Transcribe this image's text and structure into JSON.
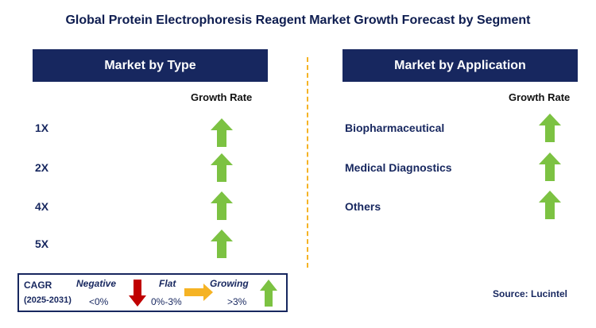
{
  "title": "Global Protein Electrophoresis Reagent Market Growth Forecast by Segment",
  "left_panel": {
    "header": "Market by Type",
    "column_header": "Growth Rate",
    "rows": [
      {
        "label": "1X",
        "growth": "growing"
      },
      {
        "label": "2X",
        "growth": "growing"
      },
      {
        "label": "4X",
        "growth": "growing"
      },
      {
        "label": "5X",
        "growth": "growing"
      }
    ]
  },
  "right_panel": {
    "header": "Market by Application",
    "column_header": "Growth Rate",
    "rows": [
      {
        "label": "Biopharmaceutical",
        "growth": "growing"
      },
      {
        "label": "Medical Diagnostics",
        "growth": "growing"
      },
      {
        "label": "Others",
        "growth": "growing"
      }
    ]
  },
  "legend": {
    "cagr": "CAGR",
    "period": "(2025-2031)",
    "negative_label": "Negative",
    "negative_value": "<0%",
    "flat_label": "Flat",
    "flat_value": "0%-3%",
    "growing_label": "Growing",
    "growing_value": ">3%"
  },
  "source": "Source: Lucintel",
  "colors": {
    "header_bg": "#17275f",
    "arrow_up": "#7cc242",
    "arrow_down": "#c00000",
    "arrow_flat": "#f5b324",
    "divider": "#f5b324"
  },
  "icons": {
    "growing": "green-up-arrow-icon",
    "negative": "red-down-arrow-icon",
    "flat": "yellow-right-arrow-icon"
  }
}
